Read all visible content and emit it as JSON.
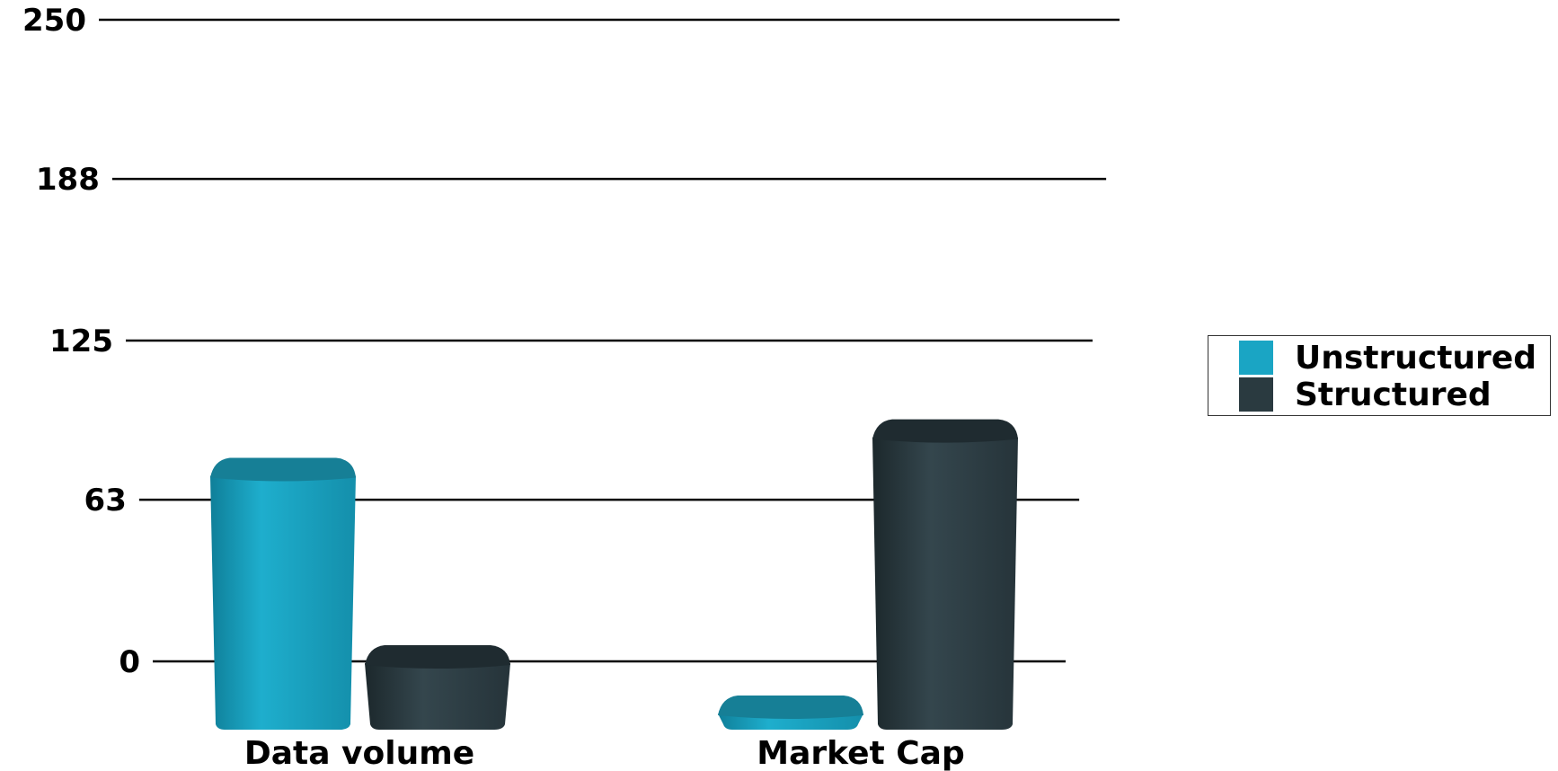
{
  "chart_data": {
    "type": "bar",
    "categories": [
      "Data volume",
      "Market Cap"
    ],
    "series": [
      {
        "name": "Unstructured",
        "values": [
          80,
          -20
        ],
        "color": "#1aa5c4"
      },
      {
        "name": "Structured",
        "values": [
          7,
          95
        ],
        "color": "#2a3a40"
      }
    ],
    "y_ticks": [
      "0",
      "63",
      "125",
      "188",
      "250"
    ],
    "ylim": [
      0,
      250
    ],
    "grid": true,
    "legend_placement": "right",
    "title": "",
    "xlabel": "",
    "ylabel": ""
  }
}
